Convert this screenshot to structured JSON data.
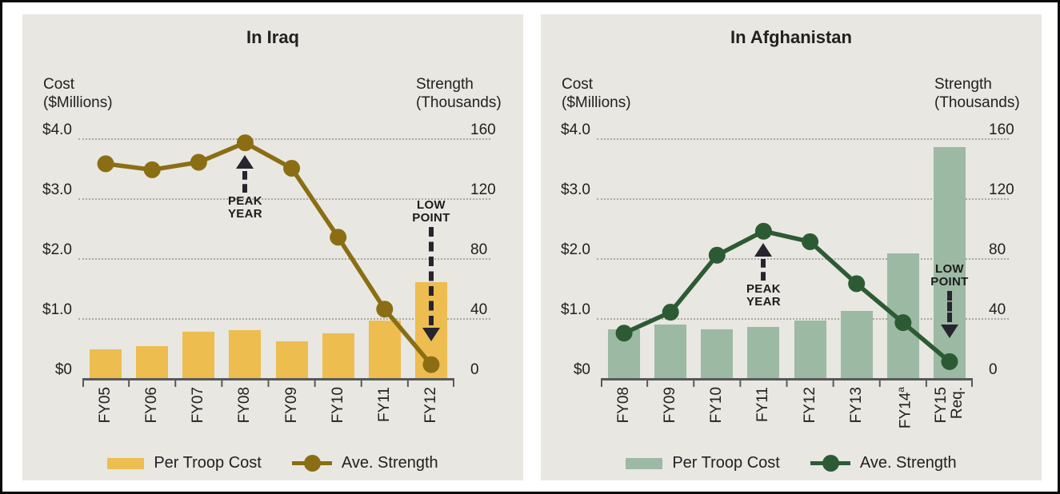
{
  "colors": {
    "panel_bg": "#E8E7E2",
    "axis": "#58595B",
    "gridline": "#A9A8A3",
    "text": "#232020",
    "annotation_arrow": "#27242F",
    "iraq_bar": "#EDBD4F",
    "iraq_line": "#8B6E14",
    "afghanistan_bar": "#9CB9A4",
    "afghanistan_line": "#2C5B33"
  },
  "chart_data": [
    {
      "type": "bar+line",
      "title": "In Iraq",
      "left_axis": {
        "title_lines": [
          "Cost",
          "($Millions)"
        ],
        "ticks": [
          "$4.0",
          "$3.0",
          "$2.0",
          "$1.0",
          "$0"
        ],
        "min": 0,
        "max": 4.0
      },
      "right_axis": {
        "title_lines": [
          "Strength",
          "(Thousands)"
        ],
        "ticks": [
          "160",
          "120",
          "80",
          "40",
          "0"
        ],
        "min": 0,
        "max": 160
      },
      "categories": [
        {
          "label": "FY05"
        },
        {
          "label": "FY06"
        },
        {
          "label": "FY07"
        },
        {
          "label": "FY08"
        },
        {
          "label": "FY09"
        },
        {
          "label": "FY10"
        },
        {
          "label": "FY11"
        },
        {
          "label": "FY12"
        }
      ],
      "series": [
        {
          "name": "Per Troop Cost",
          "type": "bar",
          "axis": "left",
          "color": "#EDBD4F",
          "values": [
            0.48,
            0.54,
            0.78,
            0.8,
            0.62,
            0.75,
            0.96,
            1.6
          ]
        },
        {
          "name": "Ave. Strength",
          "type": "line",
          "axis": "right",
          "color": "#8B6E14",
          "values": [
            143,
            139,
            144,
            157,
            140,
            94,
            46,
            9
          ]
        }
      ],
      "annotations": [
        {
          "lines": [
            "PEAK",
            "YEAR"
          ],
          "slot": 3,
          "direction": "up"
        },
        {
          "lines": [
            "LOW",
            "POINT"
          ],
          "slot": 7,
          "direction": "down",
          "y_text": 76
        }
      ],
      "grid": "horizontal dotted at $1.0/$2.0/$3.0/$4.0",
      "legend_position": "bottom"
    },
    {
      "type": "bar+line",
      "title": "In Afghanistan",
      "left_axis": {
        "title_lines": [
          "Cost",
          "($Millions)"
        ],
        "ticks": [
          "$4.0",
          "$3.0",
          "$2.0",
          "$1.0",
          "$0"
        ],
        "min": 0,
        "max": 4.0
      },
      "right_axis": {
        "title_lines": [
          "Strength",
          "(Thousands)"
        ],
        "ticks": [
          "160",
          "120",
          "80",
          "40",
          "0"
        ],
        "min": 0,
        "max": 160
      },
      "categories": [
        {
          "label": "FY08"
        },
        {
          "label": "FY09"
        },
        {
          "label": "FY10"
        },
        {
          "label": "FY11"
        },
        {
          "label": "FY12"
        },
        {
          "label": "FY13"
        },
        {
          "label": "FY14",
          "sup": "a"
        },
        {
          "label": "FY15",
          "sub": "Req."
        }
      ],
      "series": [
        {
          "name": "Per Troop Cost",
          "type": "bar",
          "axis": "left",
          "color": "#9CB9A4",
          "values": [
            0.81,
            0.9,
            0.81,
            0.86,
            0.96,
            1.12,
            2.08,
            3.85
          ]
        },
        {
          "name": "Ave. Strength",
          "type": "line",
          "axis": "right",
          "color": "#2C5B33",
          "values": [
            30,
            44,
            82,
            98,
            91,
            63,
            37,
            11
          ]
        }
      ],
      "annotations": [
        {
          "lines": [
            "PEAK",
            "YEAR"
          ],
          "slot": 3,
          "direction": "up"
        },
        {
          "lines": [
            "LOW",
            "POINT"
          ],
          "slot": 7,
          "direction": "down",
          "y_text": 156
        }
      ],
      "grid": "horizontal dotted at $1.0/$2.0/$3.0/$4.0",
      "legend_position": "bottom"
    }
  ]
}
